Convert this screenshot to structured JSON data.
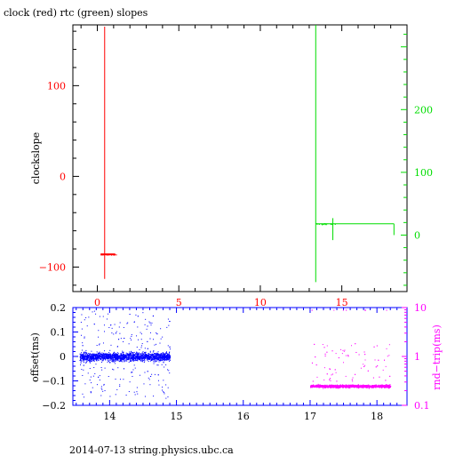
{
  "page": {
    "title": "clock (red) rtc (green) slopes",
    "footer": "2014-07-13 string.physics.ubc.ca"
  },
  "colors": {
    "red": "#ff0000",
    "green": "#00dd00",
    "blue": "#0000ff",
    "magenta": "#ff00ff",
    "axis": "#000000"
  },
  "chart_data": [
    {
      "type": "line",
      "title": "clock (red) rtc (green) slopes",
      "ylabel": "clockslope",
      "xlim": [
        -1.5,
        19
      ],
      "ylim": [
        -127,
        167
      ],
      "y2lim": [
        -90,
        335
      ],
      "x_ticks": [
        0,
        5,
        10,
        15
      ],
      "y_ticks": [
        -100,
        0,
        100
      ],
      "y2_ticks": [
        0,
        100,
        200
      ],
      "series": [
        {
          "name": "clock",
          "axis": "left",
          "color": "#ff0000",
          "points": [
            [
              0.45,
              165
            ],
            [
              0.45,
              -113
            ],
            [
              0.55,
              -86
            ],
            [
              1.1,
              -86
            ],
            [
              0.2,
              -86
            ]
          ]
        },
        {
          "name": "rtc",
          "axis": "right",
          "color": "#00dd00",
          "points": [
            [
              13.4,
              335
            ],
            [
              13.4,
              -75
            ],
            [
              13.5,
              18
            ],
            [
              14.2,
              18
            ],
            [
              14.4,
              25
            ],
            [
              14.45,
              -8
            ],
            [
              14.5,
              18
            ],
            [
              18.2,
              18
            ],
            [
              18.2,
              0
            ]
          ]
        }
      ]
    },
    {
      "type": "scatter",
      "ylabel": "offset(ms)",
      "y2label": "rnd−trip(ms)",
      "xlim": [
        13.45,
        18.45
      ],
      "ylim": [
        -0.2,
        0.2
      ],
      "y2lim": [
        0.1,
        10
      ],
      "y2_scale": "log",
      "x_ticks": [
        14,
        15,
        16,
        17,
        18
      ],
      "y_ticks": [
        -0.2,
        -0.1,
        0,
        0.1,
        0.2
      ],
      "y2_ticks": [
        0.1,
        1,
        10
      ],
      "y2_tick_labels": [
        "0.1",
        "1",
        "10"
      ],
      "series": [
        {
          "name": "offset",
          "axis": "left",
          "color": "#0000ff",
          "x_range": [
            13.55,
            14.9
          ],
          "center": 0.0,
          "spread": 0.03,
          "outlier_range": [
            -0.17,
            0.19
          ]
        },
        {
          "name": "rnd-trip",
          "axis": "right",
          "color": "#ff00ff",
          "x_range": [
            17.0,
            18.2
          ],
          "center": 0.25,
          "spread_low": 0.2,
          "spread_high": 0.32,
          "outlier_range": [
            0.3,
            9
          ]
        }
      ]
    }
  ]
}
